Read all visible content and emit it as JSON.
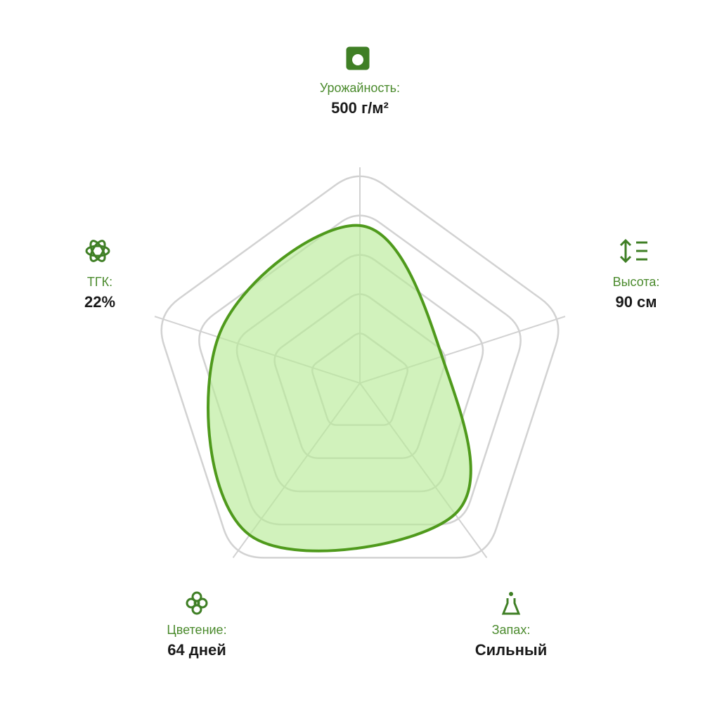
{
  "chart_data": {
    "type": "radar",
    "categories": [
      "Урожайность:",
      "Высота:",
      "Запах:",
      "Цветение:",
      "ТГК:"
    ],
    "details": [
      "500 г/м²",
      "90 см",
      "Сильный",
      "64 дней",
      "22%"
    ],
    "values": [
      73,
      40,
      75,
      87,
      69
    ],
    "ylim": [
      0,
      100
    ],
    "yticks": [
      24,
      43,
      62,
      81,
      100
    ],
    "color": "#4f9a1c",
    "fill": "#b9eb98",
    "grid": true
  }
}
